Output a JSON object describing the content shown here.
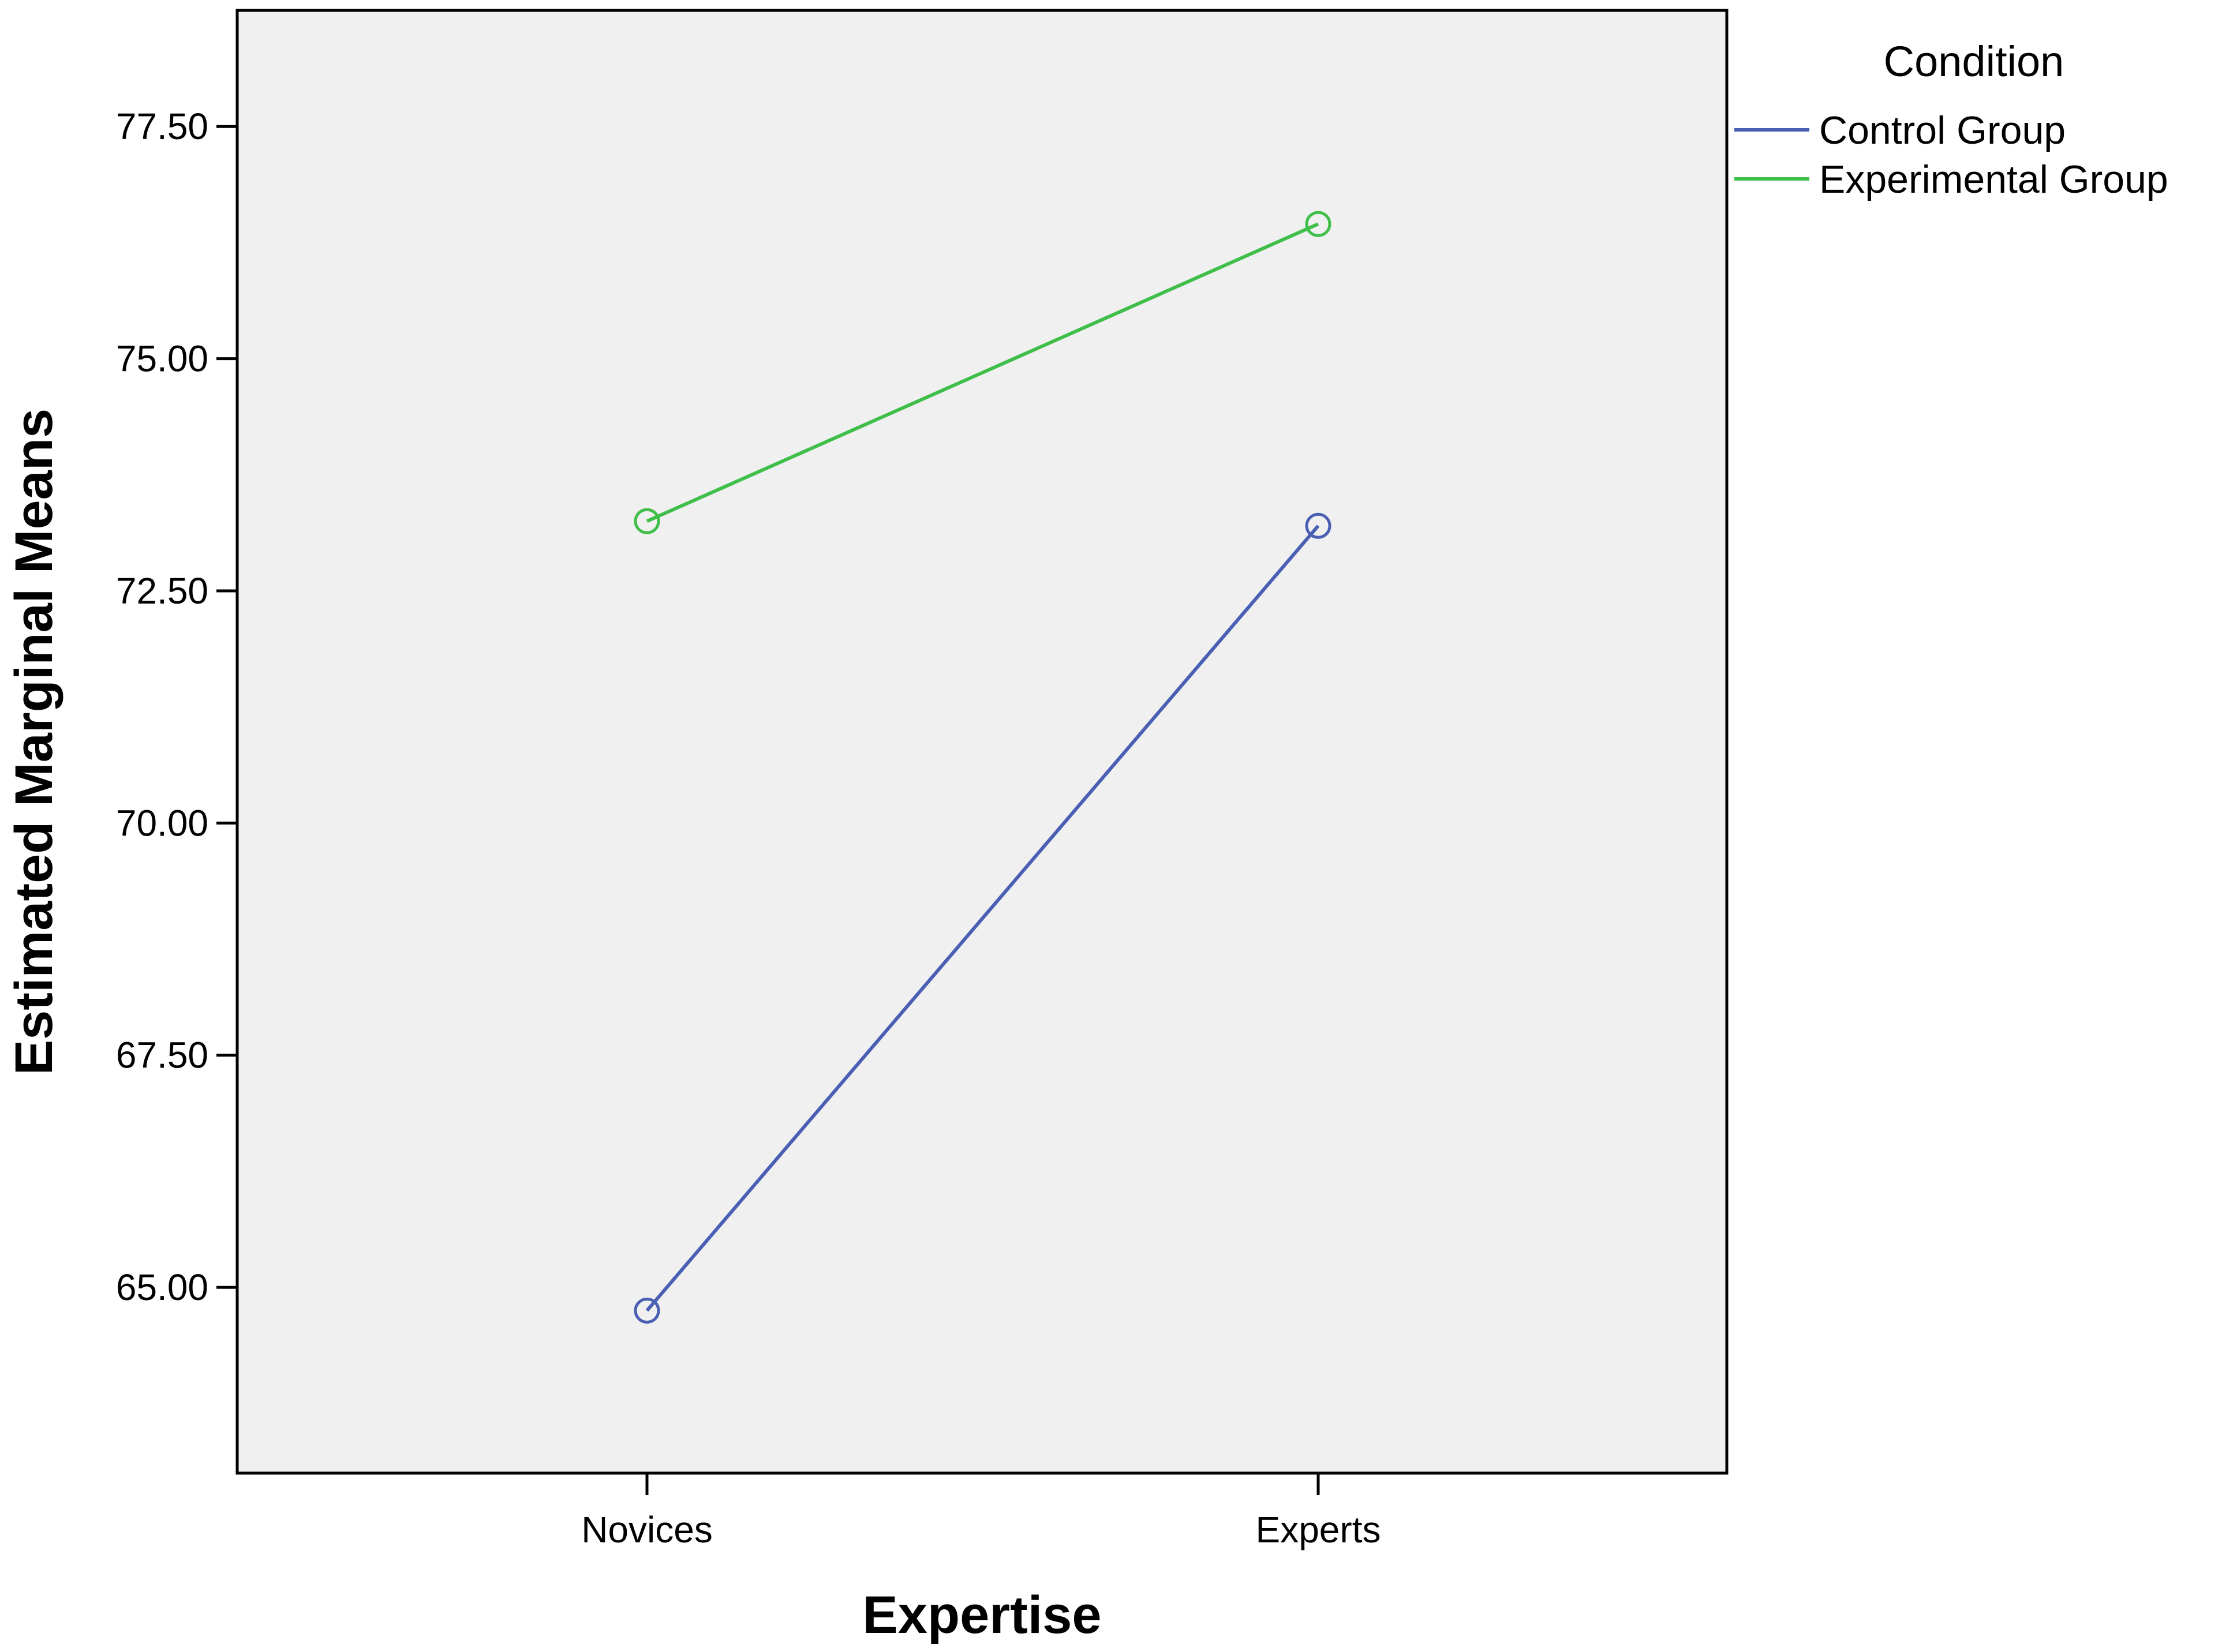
{
  "chart_data": {
    "type": "line",
    "title": "",
    "xlabel": "Expertise",
    "ylabel": "Estimated Marginal Means",
    "categories": [
      "Novices",
      "Experts"
    ],
    "ylim": [
      63.0,
      78.75
    ],
    "yticks": [
      65.0,
      67.5,
      70.0,
      72.5,
      75.0,
      77.5
    ],
    "ytick_labels": [
      "65.00",
      "67.50",
      "70.00",
      "72.50",
      "75.00",
      "77.50"
    ],
    "grid": false,
    "legend": {
      "title": "Condition",
      "placement": "top-right, outside plot"
    },
    "series": [
      {
        "name": "Control Group",
        "values": [
          64.75,
          73.2
        ],
        "color": "#4a5fb4",
        "marker": "open-circle"
      },
      {
        "name": "Experimental Group",
        "values": [
          73.25,
          76.45
        ],
        "color": "#3fbf49",
        "marker": "open-circle"
      }
    ],
    "colors": {
      "plot_background": "#f0f0f0",
      "frame": "#000000"
    }
  }
}
